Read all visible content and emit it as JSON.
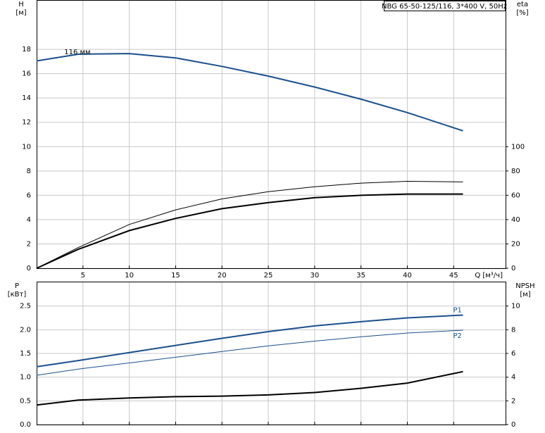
{
  "chart_data": [
    {
      "type": "line",
      "title": "NBG 65-50-125/116, 3*400 V, 50Hz",
      "y_label": "H",
      "y_unit": "[м]",
      "y2_label": "eta",
      "y2_unit": "[%]",
      "x_label": "Q [м³/ч]",
      "annotation": "116 мм",
      "x": [
        0,
        4.5,
        10,
        15,
        20,
        25,
        30,
        35,
        40,
        46
      ],
      "xlim": [
        0,
        50.6
      ],
      "xticks": [
        5,
        10,
        15,
        20,
        25,
        30,
        35,
        40,
        45
      ],
      "xtick_labels": true,
      "ylim": [
        0,
        22
      ],
      "yticks": [
        0,
        2,
        4,
        6,
        8,
        10,
        12,
        14,
        16,
        18
      ],
      "y2lim": [
        0,
        220
      ],
      "y2ticks": [
        0,
        20,
        40,
        60,
        80,
        100
      ],
      "grid": true,
      "series": [
        {
          "color": "#1b4f8c",
          "line_width": 2,
          "values": [
            17.05,
            17.6,
            17.65,
            17.3,
            16.6,
            15.8,
            14.9,
            13.9,
            12.8,
            11.3
          ]
        },
        {
          "color": "#000000",
          "line_width": 1,
          "axis": "y2",
          "values": [
            0,
            17,
            36,
            48,
            57,
            63,
            67,
            70,
            71.5,
            71
          ]
        },
        {
          "color": "#000000",
          "line_width": 2,
          "axis": "y2",
          "values": [
            0,
            15.6,
            31,
            41,
            49,
            54,
            58,
            60,
            61,
            61
          ]
        }
      ]
    },
    {
      "type": "line",
      "y_label": "P",
      "y_unit": "[кВт]",
      "y2_label": "NPSH",
      "y2_unit": "[м]",
      "x": [
        0,
        4.5,
        10,
        15,
        20,
        25,
        30,
        35,
        40,
        46
      ],
      "xlim": [
        0,
        50.6
      ],
      "xticks": [
        5,
        10,
        15,
        20,
        25,
        30,
        35,
        40,
        45
      ],
      "xtick_labels": false,
      "ylim": [
        0,
        3
      ],
      "yticks": [
        {
          "value": 0,
          "label": "0.0"
        },
        0.5,
        {
          "value": 1,
          "label": "1.0"
        },
        1.5,
        {
          "value": 2,
          "label": "2.0"
        },
        2.5
      ],
      "y2lim": [
        0,
        12
      ],
      "y2ticks": [
        0,
        2,
        4,
        6,
        8,
        10
      ],
      "grid": true,
      "series": [
        {
          "name": "P1",
          "color": "#1b4f8c",
          "line_width": 2,
          "values": [
            1.22,
            1.35,
            1.52,
            1.67,
            1.82,
            1.96,
            2.08,
            2.17,
            2.25,
            2.31
          ]
        },
        {
          "name": "P2",
          "color": "#1b4f8c",
          "line_width": 1,
          "values": [
            1.04,
            1.17,
            1.3,
            1.42,
            1.54,
            1.66,
            1.76,
            1.85,
            1.93,
            1.99
          ]
        },
        {
          "color": "#000000",
          "line_width": 2,
          "axis": "y2",
          "values": [
            1.65,
            2.06,
            2.24,
            2.35,
            2.4,
            2.5,
            2.7,
            3.06,
            3.5,
            4.47
          ]
        }
      ]
    }
  ]
}
